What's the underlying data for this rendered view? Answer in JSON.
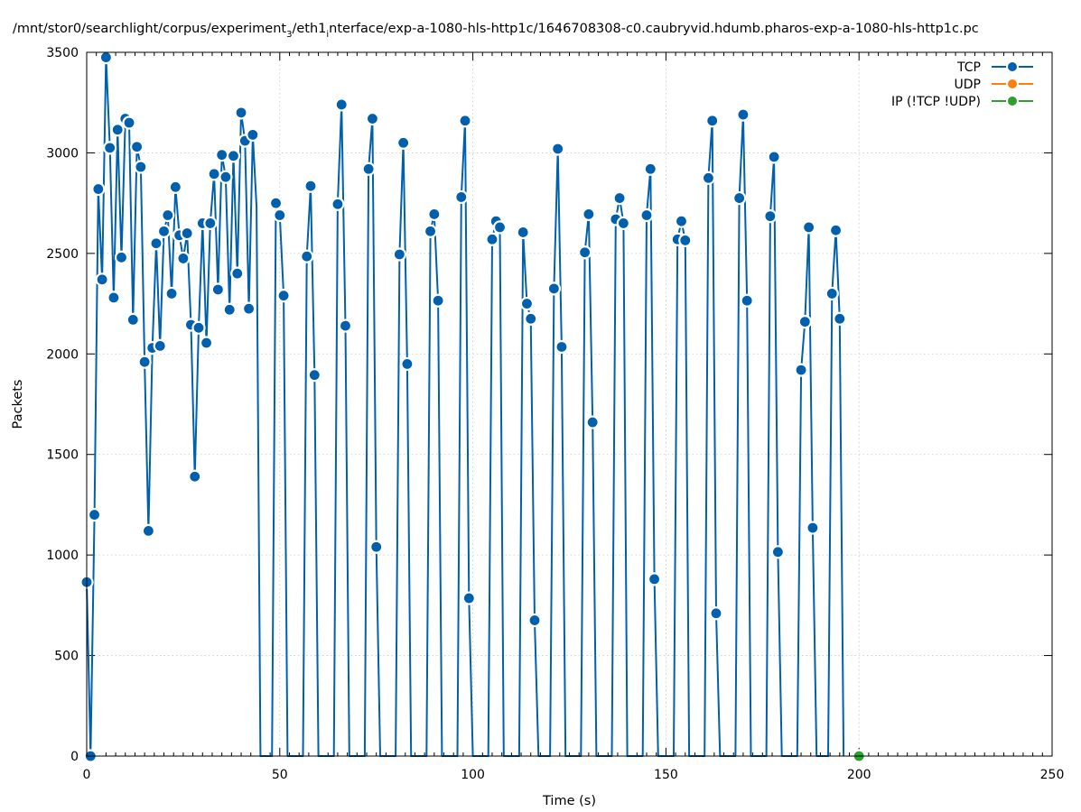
{
  "chart_data": {
    "type": "line",
    "title": "/mnt/stor0/searchlight/corpus/experiment",
    "title_sub": "3",
    "title_mid": "/eth1",
    "title_sub2": "i",
    "title_end": "nterface/exp-a-1080-hls-http1c/1646708308-c0.caubryvid.hdumb.pharos-exp-a-1080-hls-http1c.pc",
    "xlabel": "Time (s)",
    "ylabel": "Packets",
    "xlim": [
      0,
      250
    ],
    "ylim": [
      0,
      3500
    ],
    "xticks": [
      0,
      50,
      100,
      150,
      200,
      250
    ],
    "yticks": [
      0,
      500,
      1000,
      1500,
      2000,
      2500,
      3000,
      3500
    ],
    "grid": true,
    "legend_position": "top-right",
    "series": [
      {
        "name": "TCP",
        "color": "#0060ad",
        "marker": "circle",
        "x": [
          0,
          1,
          2,
          3,
          4,
          5,
          6,
          7,
          8,
          9,
          10,
          11,
          12,
          13,
          14,
          15,
          16,
          17,
          18,
          19,
          20,
          21,
          22,
          23,
          24,
          25,
          26,
          27,
          28,
          29,
          30,
          31,
          32,
          33,
          34,
          35,
          36,
          37,
          38,
          39,
          40,
          41,
          42,
          43,
          44,
          45,
          46,
          47,
          48,
          49,
          50,
          51,
          52,
          53,
          54,
          55,
          56,
          57,
          58,
          59,
          60,
          61,
          62,
          63,
          64,
          65,
          66,
          67,
          68,
          69,
          70,
          71,
          72,
          73,
          74,
          75,
          76,
          77,
          78,
          79,
          80,
          81,
          82,
          83,
          84,
          85,
          86,
          87,
          88,
          89,
          90,
          91,
          92,
          93,
          94,
          95,
          96,
          97,
          98,
          99,
          100,
          101,
          102,
          103,
          104,
          105,
          106,
          107,
          108,
          109,
          110,
          111,
          112,
          113,
          114,
          115,
          116,
          117,
          118,
          119,
          120,
          121,
          122,
          123,
          124,
          125,
          126,
          127,
          128,
          129,
          130,
          131,
          132,
          133,
          134,
          135,
          136,
          137,
          138,
          139,
          140,
          141,
          142,
          143,
          144,
          145,
          146,
          147,
          148,
          149,
          150,
          151,
          152,
          153,
          154,
          155,
          156,
          157,
          158,
          159,
          160,
          161,
          162,
          163,
          164,
          165,
          166,
          167,
          168,
          169,
          170,
          171,
          172,
          173,
          174,
          175,
          176,
          177,
          178,
          179,
          180,
          181,
          182,
          183,
          184,
          185,
          186,
          187,
          188,
          189,
          190,
          191,
          192,
          193,
          194,
          195,
          196
        ],
        "y": [
          865,
          0,
          1200,
          2820,
          2370,
          3475,
          3025,
          2280,
          3115,
          2480,
          3170,
          3150,
          2170,
          3030,
          2930,
          1960,
          1120,
          2030,
          2550,
          2040,
          2610,
          2690,
          2300,
          2830,
          2590,
          2475,
          2600,
          2145,
          1390,
          2130,
          2650,
          2055,
          2650,
          2895,
          2320,
          2990,
          2880,
          2220,
          2985,
          2400,
          3200,
          3060,
          2225,
          3090,
          2730,
          0,
          0,
          0,
          0,
          2750,
          2690,
          2290,
          0,
          0,
          0,
          0,
          0,
          2485,
          2835,
          1895,
          0,
          0,
          0,
          0,
          0,
          2745,
          3240,
          2140,
          0,
          0,
          0,
          0,
          0,
          2920,
          3170,
          1040,
          0,
          0,
          0,
          0,
          0,
          2495,
          3050,
          1950,
          0,
          0,
          0,
          0,
          0,
          2610,
          2695,
          2265,
          0,
          0,
          0,
          0,
          0,
          2780,
          3160,
          785,
          0,
          0,
          0,
          0,
          0,
          2570,
          2660,
          2630,
          0,
          0,
          0,
          0,
          0,
          2605,
          2250,
          2175,
          675,
          0,
          0,
          0,
          0,
          2325,
          3020,
          2035,
          0,
          0,
          0,
          0,
          0,
          2505,
          2695,
          1660,
          0,
          0,
          0,
          0,
          0,
          2670,
          2775,
          2650,
          0,
          0,
          0,
          0,
          0,
          2690,
          2920,
          880,
          0,
          0,
          0,
          0,
          0,
          2570,
          2660,
          2565,
          0,
          0,
          0,
          0,
          0,
          2875,
          3160,
          710,
          0,
          0,
          0,
          0,
          0,
          2775,
          3190,
          2265,
          0,
          0,
          0,
          0,
          0,
          2685,
          2980,
          1015,
          0,
          0,
          0,
          0,
          0,
          1920,
          2160,
          2630,
          1135,
          0,
          0,
          0,
          0,
          2300,
          2615,
          2175,
          0
        ],
        "markers_x": [
          0,
          1,
          2,
          3,
          4,
          5,
          6,
          7,
          8,
          9,
          10,
          11,
          12,
          13,
          14,
          15,
          16,
          17,
          18,
          19,
          20,
          21,
          22,
          23,
          24,
          25,
          26,
          27,
          28,
          29,
          30,
          31,
          32,
          33,
          34,
          35,
          36,
          37,
          38,
          39,
          40,
          41,
          42,
          43,
          49,
          50,
          51,
          57,
          58,
          59,
          65,
          66,
          67,
          73,
          74,
          75,
          81,
          82,
          83,
          89,
          90,
          91,
          97,
          98,
          99,
          105,
          106,
          107,
          113,
          114,
          115,
          116,
          121,
          122,
          123,
          129,
          130,
          131,
          137,
          138,
          139,
          145,
          146,
          147,
          153,
          154,
          155,
          161,
          162,
          163,
          169,
          170,
          171,
          177,
          178,
          179,
          185,
          186,
          187,
          188,
          193,
          194,
          195
        ]
      },
      {
        "name": "UDP",
        "color": "#ff7f0e",
        "marker": "circle",
        "x": [],
        "y": []
      },
      {
        "name": "IP (!TCP  !UDP)",
        "color": "#2ca02c",
        "marker": "circle",
        "x": [
          200
        ],
        "y": [
          0
        ]
      }
    ]
  }
}
